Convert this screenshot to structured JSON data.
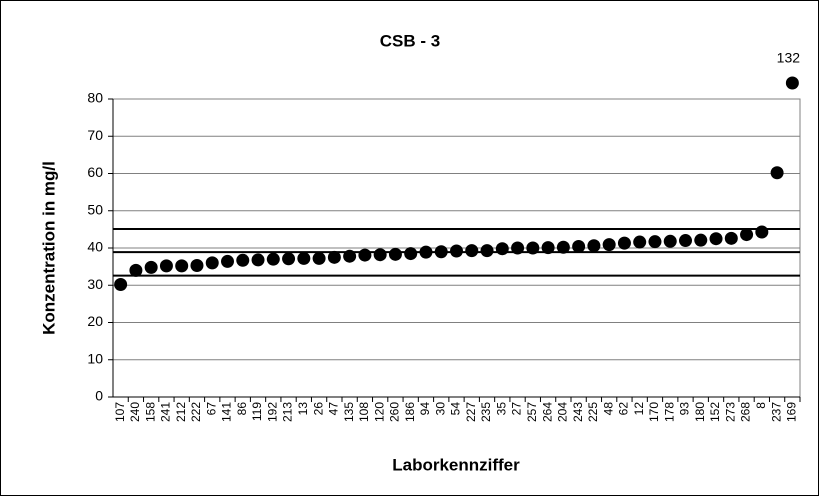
{
  "chart_data": {
    "type": "scatter",
    "title": "CSB - 3",
    "x_label": "Laborkennziffer",
    "y_label": "Konzentration in mg/l",
    "categories": [
      "107",
      "240",
      "158",
      "241",
      "212",
      "222",
      "67",
      "141",
      "86",
      "119",
      "192",
      "213",
      "13",
      "26",
      "47",
      "135",
      "108",
      "120",
      "260",
      "186",
      "94",
      "30",
      "54",
      "227",
      "235",
      "35",
      "27",
      "257",
      "264",
      "204",
      "243",
      "225",
      "48",
      "62",
      "12",
      "170",
      "178",
      "93",
      "180",
      "152",
      "273",
      "268",
      "8",
      "237",
      "169"
    ],
    "values": [
      30.2,
      34.0,
      34.8,
      35.2,
      35.2,
      35.3,
      36.0,
      36.4,
      36.7,
      36.8,
      37.0,
      37.1,
      37.2,
      37.2,
      37.5,
      37.8,
      38.1,
      38.2,
      38.3,
      38.5,
      38.9,
      39.0,
      39.2,
      39.3,
      39.3,
      39.8,
      40.0,
      40.0,
      40.1,
      40.2,
      40.4,
      40.6,
      40.9,
      41.3,
      41.6,
      41.7,
      41.8,
      42.0,
      42.1,
      42.5,
      42.6,
      43.6,
      44.3,
      60.2,
      132
    ],
    "value_labels": [
      null,
      null,
      null,
      null,
      null,
      null,
      null,
      null,
      null,
      null,
      null,
      null,
      null,
      null,
      null,
      null,
      null,
      null,
      null,
      null,
      null,
      null,
      null,
      null,
      null,
      null,
      null,
      null,
      null,
      null,
      null,
      null,
      null,
      null,
      null,
      null,
      null,
      null,
      null,
      null,
      null,
      null,
      null,
      null,
      "132"
    ],
    "color": "#000000",
    "reference_lines": [
      45.1,
      38.9,
      32.6
    ],
    "ylim": [
      0,
      80
    ],
    "yticks": [
      0,
      10,
      20,
      30,
      40,
      50,
      60,
      70,
      80
    ],
    "grid": true
  }
}
